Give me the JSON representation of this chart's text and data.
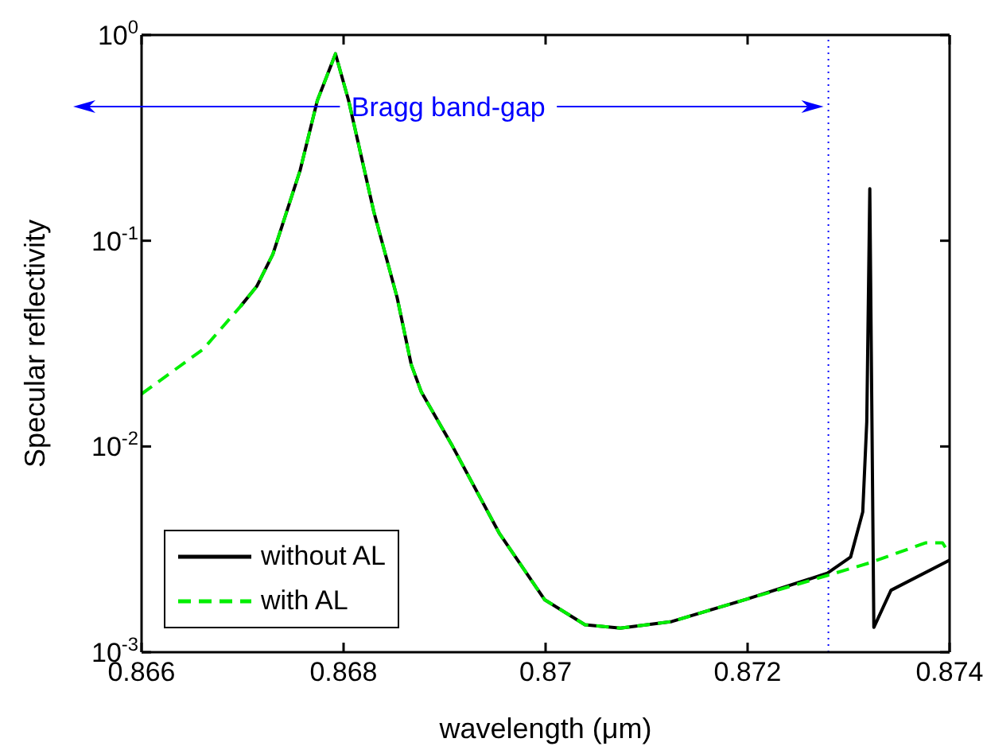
{
  "chart_data": {
    "type": "line",
    "xlabel": "wavelength (μm)",
    "ylabel": "Specular reflectivity",
    "log": "y",
    "xlim": [
      0.866,
      0.874
    ],
    "xticks": [
      0.866,
      0.868,
      0.87,
      0.872,
      0.874
    ],
    "ylim": [
      0.001,
      1
    ],
    "yticks": [
      {
        "value": 0.001,
        "label": "10$^{-3}$"
      },
      {
        "value": 0.01,
        "label": "10$^{-2}$"
      },
      {
        "value": 0.1,
        "label": "10$^{-1}$"
      },
      {
        "value": 1,
        "label": "10$^{0}$"
      }
    ],
    "legend": "bottom left",
    "marker": "none",
    "series": [
      {
        "name": "without AL",
        "color": "#000000",
        "line_style": "solid",
        "x": [
          0.86698,
          0.86714,
          0.8673,
          0.86757,
          0.86774,
          0.86792,
          0.86805,
          0.8683,
          0.86853,
          0.86867,
          0.86877,
          0.86908,
          0.86954,
          0.86999,
          0.87039,
          0.87074,
          0.87125,
          0.87199,
          0.87279,
          0.87302,
          0.87314,
          0.87318,
          0.87321,
          0.87325,
          0.87342,
          0.874
        ],
        "values": [
          0.048,
          0.06,
          0.086,
          0.22,
          0.48,
          0.81,
          0.48,
          0.138,
          0.053,
          0.025,
          0.0184,
          0.01,
          0.0038,
          0.0018,
          0.00136,
          0.00131,
          0.00141,
          0.00181,
          0.00242,
          0.0029,
          0.0048,
          0.0132,
          0.179,
          0.00132,
          0.002,
          0.0028
        ]
      },
      {
        "name": "with AL",
        "color": "#00ee00",
        "line_style": "dashed",
        "x": [
          0.866,
          0.86661,
          0.86698,
          0.86714,
          0.8673,
          0.86757,
          0.86774,
          0.86792,
          0.86805,
          0.8683,
          0.86853,
          0.86867,
          0.86877,
          0.86908,
          0.86954,
          0.86999,
          0.87039,
          0.87074,
          0.87125,
          0.87199,
          0.87279,
          0.87322,
          0.87376,
          0.87393,
          0.874
        ],
        "values": [
          0.018,
          0.0297,
          0.048,
          0.06,
          0.086,
          0.22,
          0.48,
          0.81,
          0.48,
          0.138,
          0.053,
          0.025,
          0.0184,
          0.01,
          0.0038,
          0.0018,
          0.00136,
          0.00131,
          0.00141,
          0.00181,
          0.00236,
          0.00273,
          0.0034,
          0.0034,
          0.003
        ]
      }
    ],
    "ref_lines": [
      {
        "axis": "x",
        "value": 0.8728,
        "color": "#0000ff",
        "line_style": "dotted"
      }
    ],
    "annotations": [
      "Bragg band-gap"
    ]
  }
}
